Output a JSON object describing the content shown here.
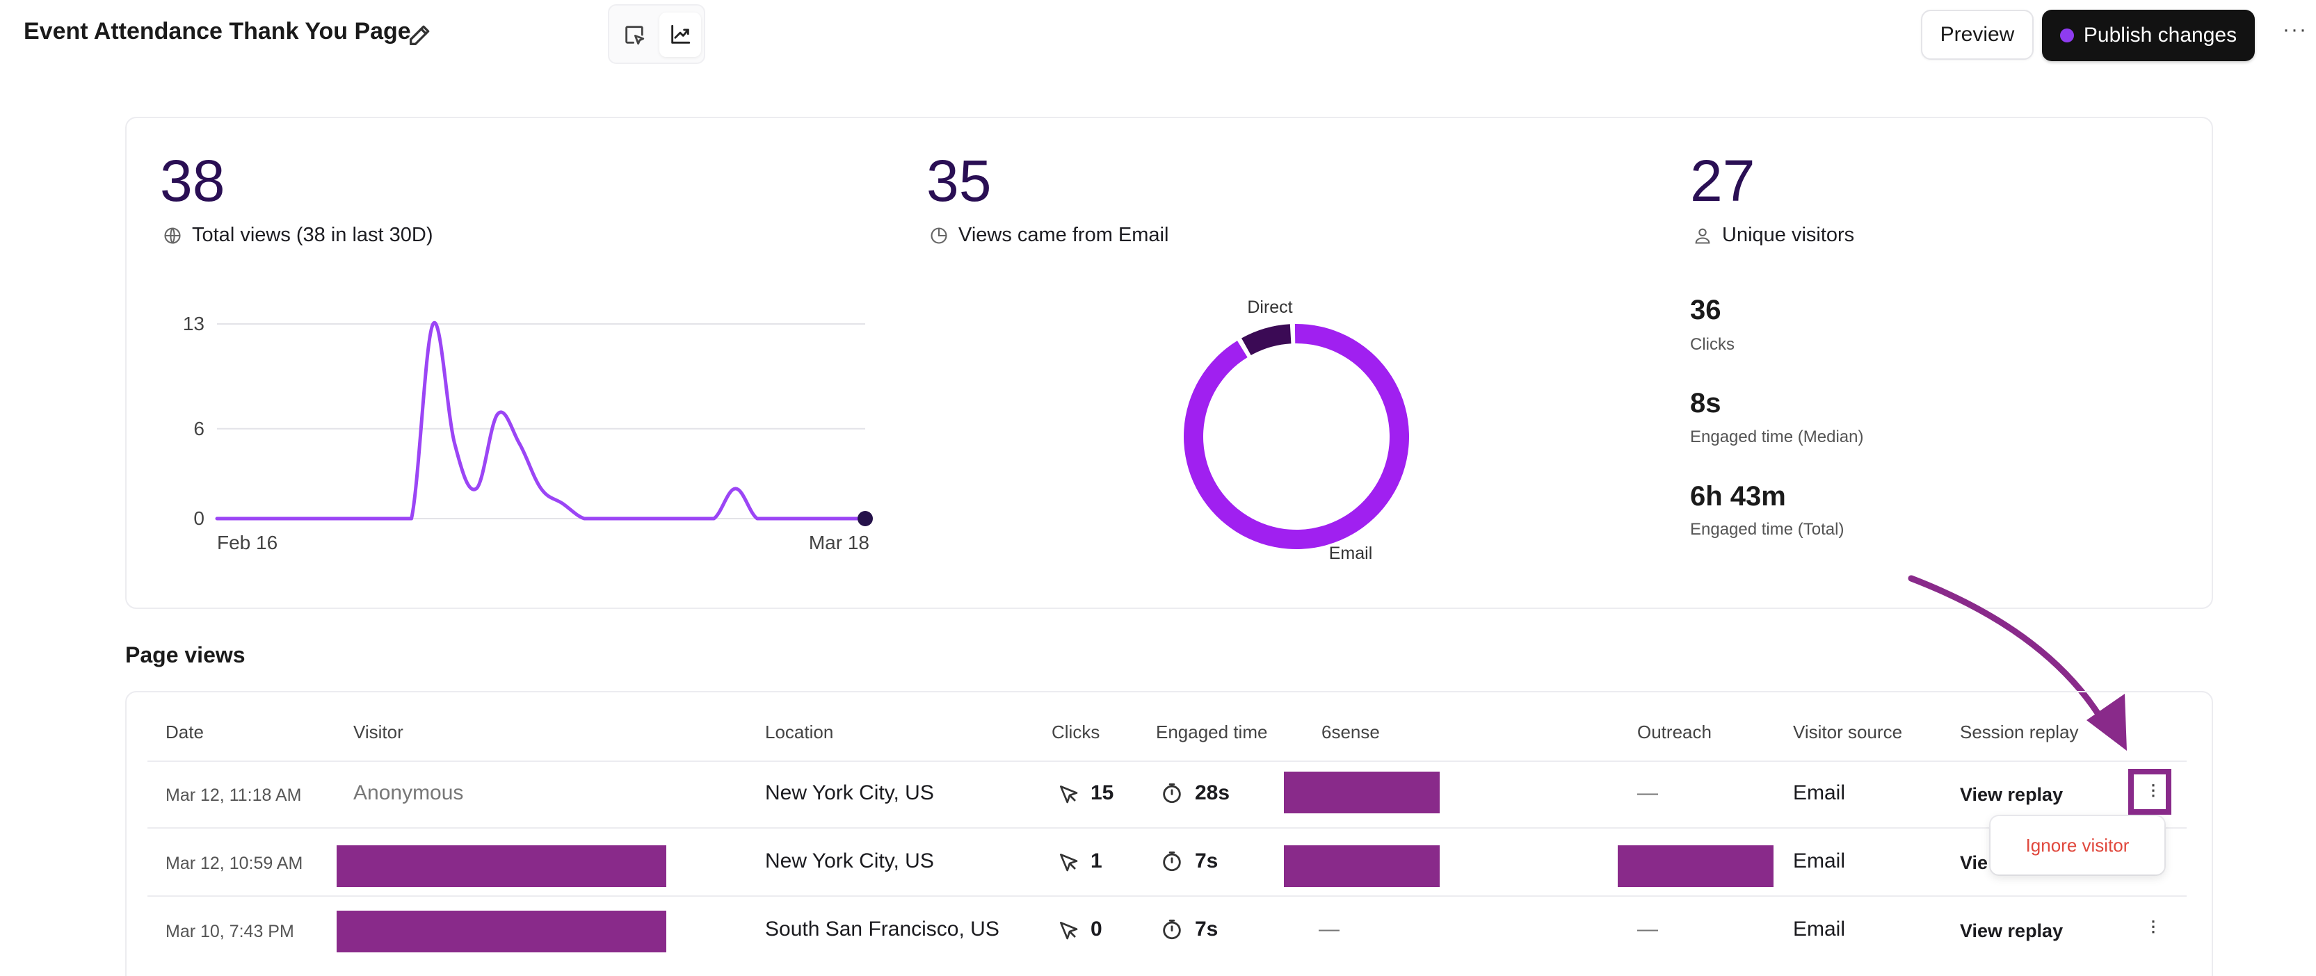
{
  "header": {
    "title": "Event Attendance Thank You Page",
    "preview_label": "Preview",
    "publish_label": "Publish changes",
    "more_label": "···"
  },
  "stats": {
    "total_views": "38",
    "total_views_label": "Total views (38 in last 30D)",
    "email_views": "35",
    "email_views_label": "Views came from Email",
    "unique_visitors": "27",
    "unique_visitors_label": "Unique visitors",
    "clicks": "36",
    "clicks_label": "Clicks",
    "engaged_median": "8s",
    "engaged_median_label": "Engaged time (Median)",
    "engaged_total": "6h 43m",
    "engaged_total_label": "Engaged time (Total)"
  },
  "chart_data": [
    {
      "type": "line",
      "x_start_label": "Feb 16",
      "x_end_label": "Mar 18",
      "y_ticks": [
        0,
        6,
        13
      ],
      "ylim": [
        0,
        13
      ],
      "grid": true,
      "color": "#9b45f5",
      "values": [
        0,
        0,
        0,
        0,
        0,
        0,
        0,
        0,
        0,
        0,
        13,
        5,
        2,
        7,
        5,
        2,
        1,
        0,
        0,
        0,
        0,
        0,
        0,
        0,
        2,
        0,
        0,
        0,
        0,
        0,
        0
      ]
    },
    {
      "type": "pie",
      "style": "donut",
      "labels": [
        "Email",
        "Direct"
      ],
      "values": [
        35,
        3
      ],
      "colors": [
        "#a020f0",
        "#3b0a55"
      ]
    }
  ],
  "table": {
    "section_title": "Page views",
    "headers": {
      "date": "Date",
      "visitor": "Visitor",
      "location": "Location",
      "clicks": "Clicks",
      "engaged": "Engaged time",
      "sixsense": "6sense",
      "outreach": "Outreach",
      "source": "Visitor source",
      "replay": "Session replay"
    },
    "rows": [
      {
        "date": "Mar 12, 11:18 AM",
        "visitor": "Anonymous",
        "location": "New York City, US",
        "clicks": "15",
        "engaged": "28s",
        "outreach": "—",
        "source": "Email",
        "replay": "View replay"
      },
      {
        "date": "Mar 12, 10:59 AM",
        "visitor": "",
        "location": "New York City, US",
        "clicks": "1",
        "engaged": "7s",
        "outreach": "",
        "source": "Email",
        "replay": "Vie"
      },
      {
        "date": "Mar 10, 7:43 PM",
        "visitor": "",
        "location": "South San Francisco, US",
        "clicks": "0",
        "engaged": "7s",
        "sixsense": "—",
        "outreach": "—",
        "source": "Email",
        "replay": "View replay"
      }
    ],
    "popup_label": "Ignore visitor",
    "kebab": "⋮"
  },
  "colors": {
    "accent": "#892a8a",
    "number": "#2a0f54",
    "line": "#9b45f5",
    "donut_email": "#a020f0",
    "donut_direct": "#3b0a55"
  }
}
